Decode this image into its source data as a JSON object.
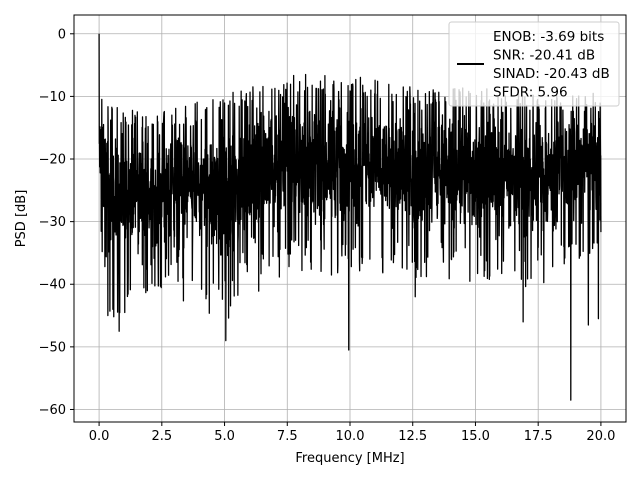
{
  "chart_data": {
    "type": "line",
    "title": "",
    "xlabel": "Frequency [MHz]",
    "ylabel": "PSD [dB]",
    "xlim": [
      -1.0,
      21.0
    ],
    "ylim": [
      -62.0,
      3.0
    ],
    "xticks": [
      0.0,
      2.5,
      5.0,
      7.5,
      10.0,
      12.5,
      15.0,
      17.5,
      20.0
    ],
    "xtick_labels": [
      "0.0",
      "2.5",
      "5.0",
      "7.5",
      "10.0",
      "12.5",
      "15.0",
      "17.5",
      "20.0"
    ],
    "yticks": [
      0,
      -10,
      -20,
      -30,
      -40,
      -50,
      -60
    ],
    "ytick_labels": [
      "0",
      "−10",
      "−20",
      "−30",
      "−40",
      "−50",
      "−60"
    ],
    "grid": true,
    "legend_position": "top-right",
    "legend_entries": [
      {
        "text_lines": [
          "ENOB: -3.69 bits",
          "SNR: -20.41 dB",
          "SINAD: -20.43 dB",
          "SFDR: 5.96"
        ],
        "color": "#000000"
      }
    ],
    "series": [
      {
        "color": "#000000",
        "description": "dense noisy PSD spectrum",
        "x_range": [
          0.0,
          20.0
        ],
        "peak": {
          "x": 0.0,
          "y": 0.0
        },
        "envelope": [
          {
            "x": 0.0,
            "upper": -10,
            "lower": -28
          },
          {
            "x": 0.5,
            "upper": -13,
            "lower": -40
          },
          {
            "x": 2.5,
            "upper": -14,
            "lower": -35
          },
          {
            "x": 5.0,
            "upper": -11,
            "lower": -40
          },
          {
            "x": 7.5,
            "upper": -8,
            "lower": -32
          },
          {
            "x": 10.0,
            "upper": -8,
            "lower": -33
          },
          {
            "x": 12.5,
            "upper": -10,
            "lower": -33
          },
          {
            "x": 15.0,
            "upper": -10,
            "lower": -34
          },
          {
            "x": 17.5,
            "upper": -11,
            "lower": -35
          },
          {
            "x": 20.0,
            "upper": -11,
            "lower": -28
          }
        ],
        "notable_minima": [
          {
            "x": 0.35,
            "y": -45
          },
          {
            "x": 0.55,
            "y": -44
          },
          {
            "x": 0.8,
            "y": -47.5
          },
          {
            "x": 5.05,
            "y": -49
          },
          {
            "x": 9.95,
            "y": -50.5
          },
          {
            "x": 12.6,
            "y": -42
          },
          {
            "x": 16.9,
            "y": -46
          },
          {
            "x": 18.8,
            "y": -58.5
          },
          {
            "x": 19.5,
            "y": -46.5
          },
          {
            "x": 19.9,
            "y": -45.5
          }
        ]
      }
    ]
  }
}
